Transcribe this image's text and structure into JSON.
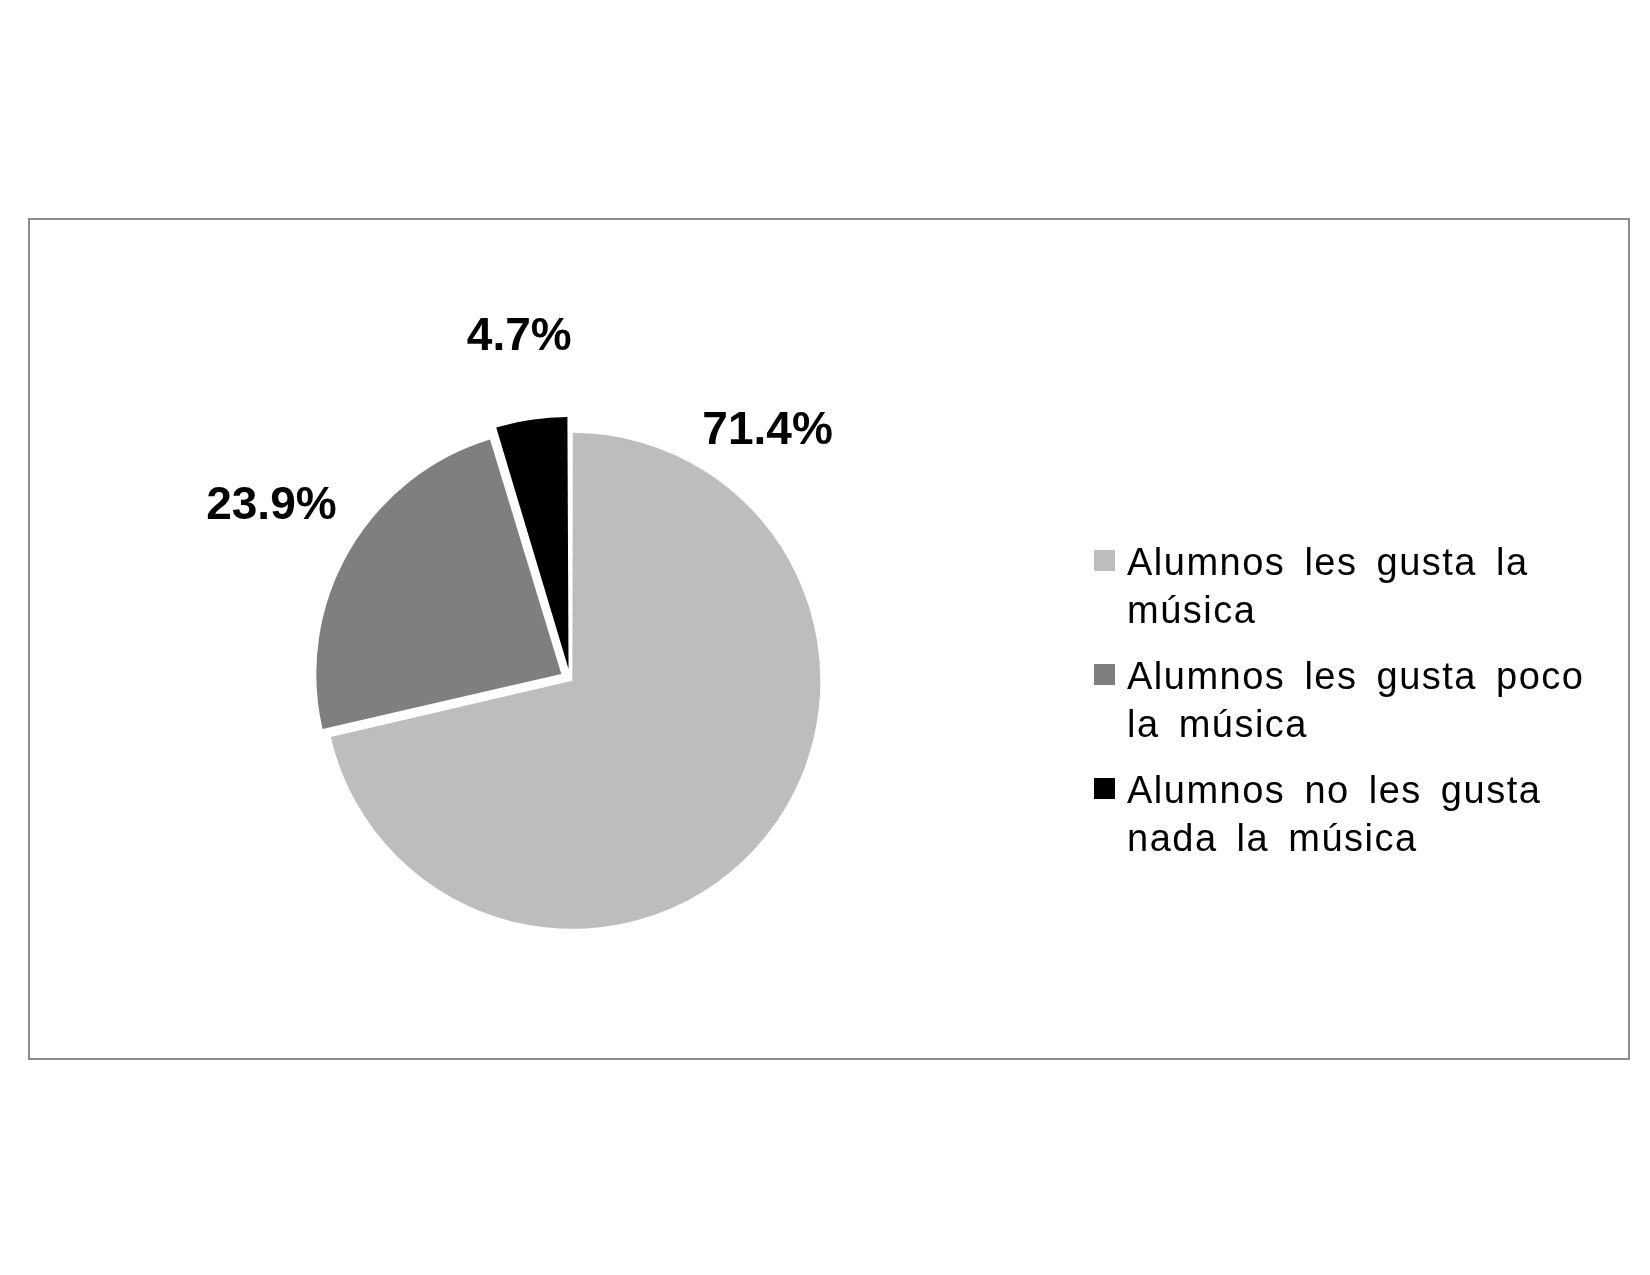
{
  "chart_data": {
    "type": "pie",
    "categories": [
      "Alumnos les gusta la música",
      "Alumnos les gusta poco la música",
      "Alumnos no les gusta nada la música"
    ],
    "values": [
      71.4,
      23.9,
      4.7
    ],
    "value_labels": [
      "71.4%",
      "23.9%",
      "4.7%"
    ],
    "colors": [
      "#bdbdbd",
      "#7f7f7f",
      "#000000"
    ],
    "legend": "right"
  }
}
